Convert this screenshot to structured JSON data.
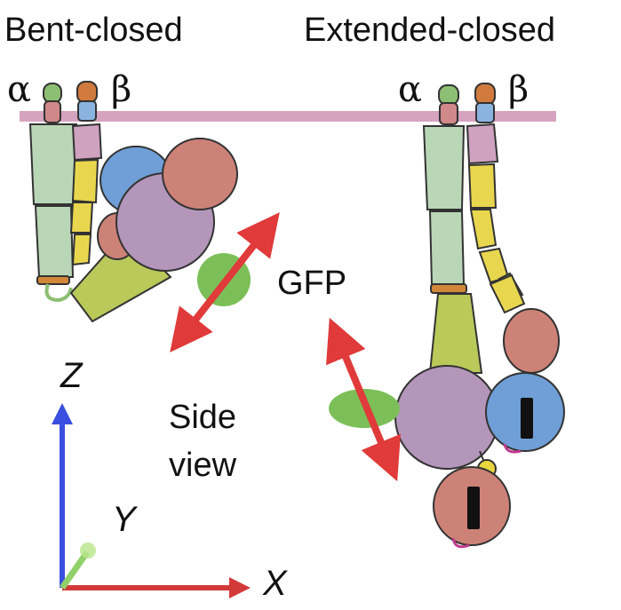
{
  "labels": {
    "bent_closed": "Bent-closed",
    "extended_closed": "Extended-closed",
    "alpha": "α",
    "beta": "β",
    "gfp": "GFP",
    "side": "Side",
    "view": "view",
    "axis_z": "Z",
    "axis_y": "Y",
    "axis_x": "X"
  },
  "colors": {
    "membrane": "#d6a3bf",
    "alpha_leg": "#b9d7b7",
    "alpha_tip": "#8cbf72",
    "alpha_red": "#d08888",
    "beta_leg_pink": "#cfa2bf",
    "beta_leg_yellow": "#e8d64e",
    "beta_tip": "#d07a3d",
    "beta_blue": "#8ab3e0",
    "propeller": "#b496ba",
    "thigh_green": "#b9c95a",
    "gfp": "#7cbf59",
    "red_domain": "#cd8278",
    "blue_domain": "#6f9fd6",
    "arrow": "#e03a3a",
    "axis_z": "#3a4fe0",
    "axis_x": "#d23a3a",
    "axis_y": "#8fd06a"
  }
}
